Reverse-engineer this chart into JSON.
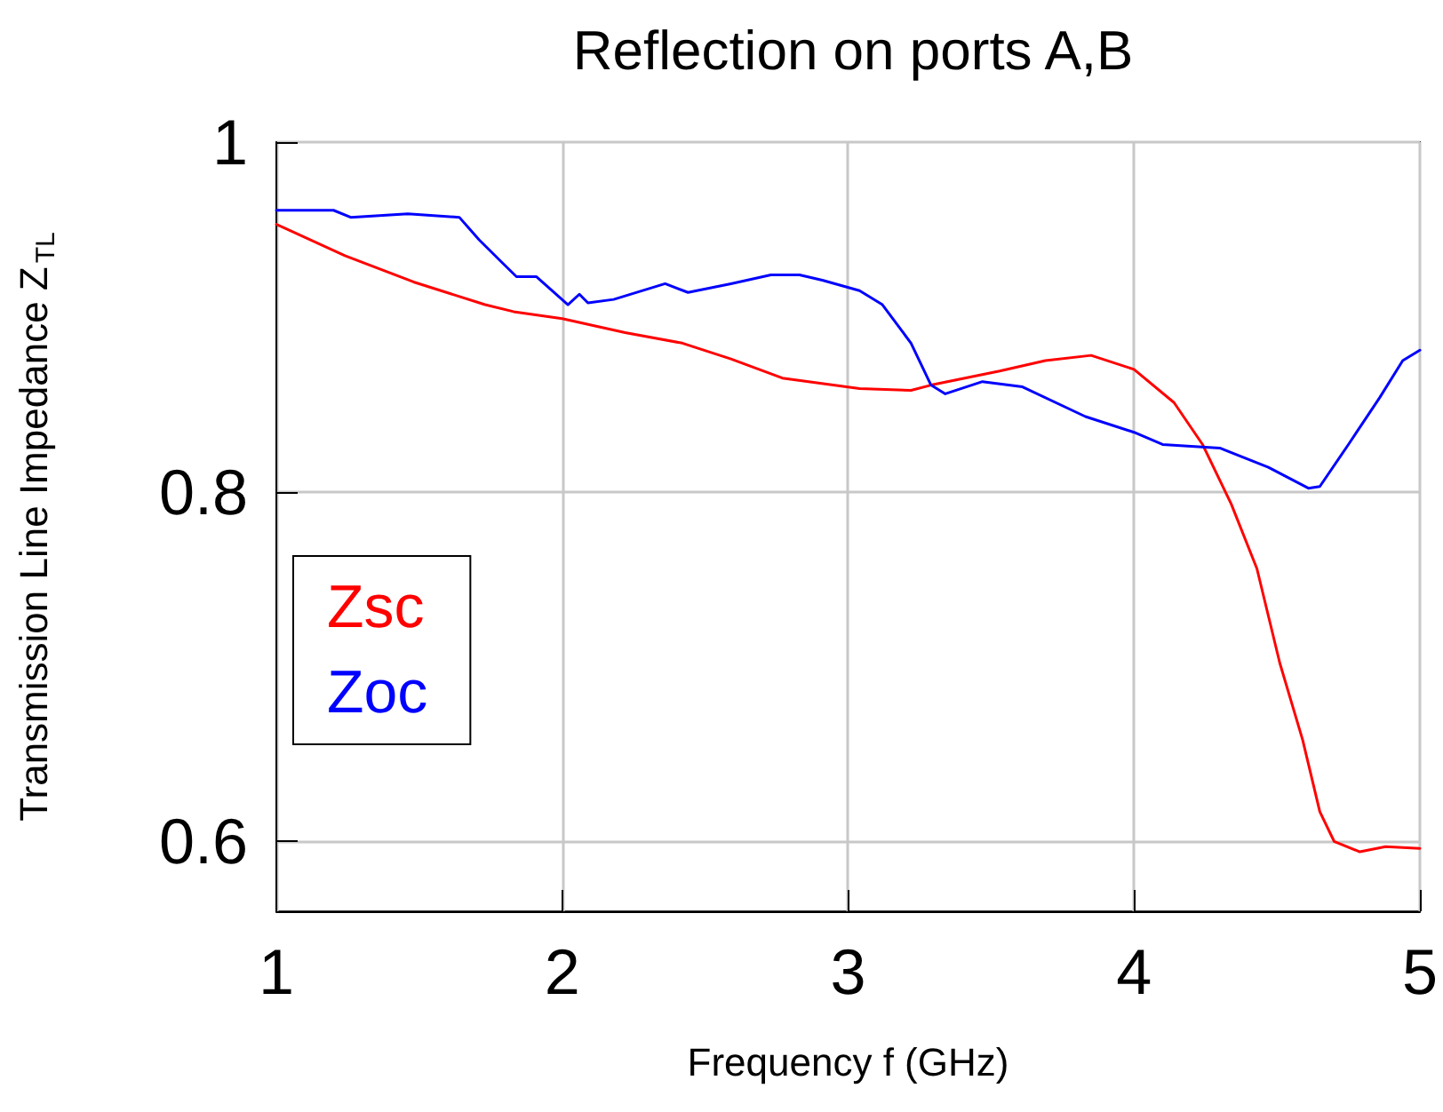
{
  "chart_data": {
    "type": "line",
    "title": "Reflection on ports A,B",
    "xlabel": "Frequency f (GHz)",
    "ylabel": "Transmission Line Impedance Z$_{TL}$",
    "xlim": [
      1,
      5
    ],
    "xticks": [
      1,
      2,
      3,
      4,
      5
    ],
    "ylim": [
      0.56,
      1
    ],
    "yticks": [
      0.6,
      0.8,
      1
    ],
    "grid": true,
    "legend": "left",
    "marker": "none",
    "line_style": "solid",
    "series": [
      {
        "name": "Zsc",
        "color": "#ff0000",
        "x": [
          1.0,
          1.24,
          1.48,
          1.73,
          1.83,
          2.0,
          2.22,
          2.42,
          2.59,
          2.77,
          3.04,
          3.22,
          3.29,
          3.53,
          3.69,
          3.85,
          4.0,
          4.14,
          4.24,
          4.34,
          4.43,
          4.51,
          4.59,
          4.65,
          4.7,
          4.79,
          4.88,
          5.0
        ],
        "values": [
          0.953,
          0.935,
          0.92,
          0.907,
          0.903,
          0.899,
          0.891,
          0.885,
          0.876,
          0.865,
          0.859,
          0.858,
          0.861,
          0.869,
          0.875,
          0.878,
          0.87,
          0.851,
          0.827,
          0.793,
          0.756,
          0.702,
          0.658,
          0.617,
          0.6,
          0.594,
          0.597,
          0.596
        ]
      },
      {
        "name": "Zoc",
        "color": "#0000ff",
        "x": [
          1.0,
          1.2,
          1.26,
          1.46,
          1.64,
          1.71,
          1.79,
          1.84,
          1.91,
          2.02,
          2.06,
          2.09,
          2.18,
          2.36,
          2.44,
          2.59,
          2.73,
          2.83,
          2.91,
          3.04,
          3.12,
          3.22,
          3.29,
          3.34,
          3.47,
          3.61,
          3.83,
          4.0,
          4.1,
          4.3,
          4.47,
          4.61,
          4.65,
          4.75,
          4.86,
          4.94,
          5.0
        ],
        "values": [
          0.961,
          0.961,
          0.957,
          0.959,
          0.957,
          0.944,
          0.931,
          0.923,
          0.923,
          0.907,
          0.913,
          0.908,
          0.91,
          0.919,
          0.914,
          0.919,
          0.924,
          0.924,
          0.921,
          0.915,
          0.907,
          0.885,
          0.861,
          0.856,
          0.863,
          0.86,
          0.843,
          0.834,
          0.827,
          0.825,
          0.814,
          0.802,
          0.803,
          0.827,
          0.854,
          0.875,
          0.881
        ]
      }
    ]
  }
}
